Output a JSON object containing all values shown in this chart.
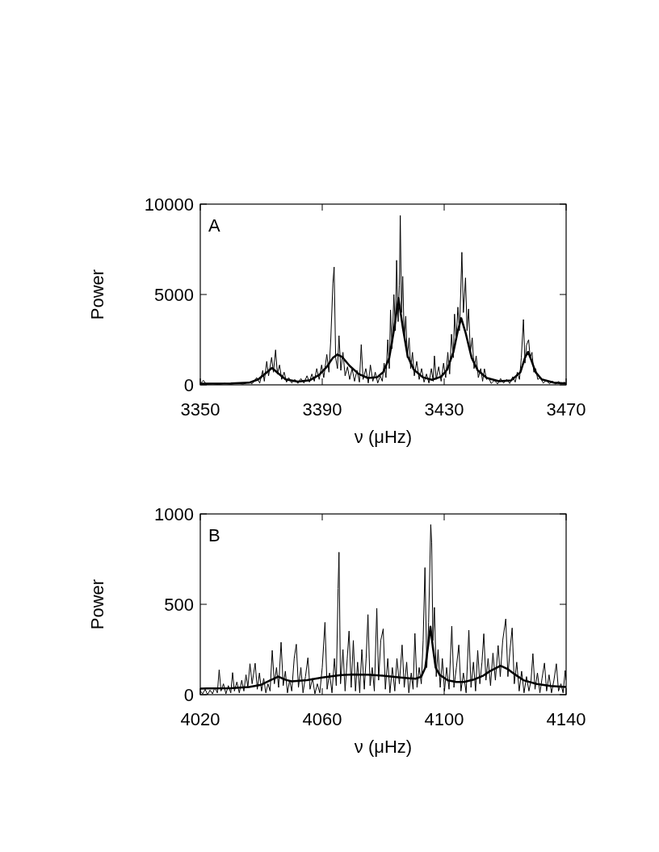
{
  "chart_data": [
    {
      "type": "line",
      "xlabel": "ν (μHz)",
      "ylabel": "Power",
      "annotations": [
        "A"
      ],
      "xlim": [
        3350,
        3470
      ],
      "xticks": [
        3350,
        3390,
        3430,
        3470
      ],
      "ylim": [
        0,
        10000
      ],
      "yticks": [
        0,
        5000,
        10000
      ],
      "series": [
        {
          "color": "#000000",
          "x": [
            3350,
            3351,
            3352,
            3354,
            3356,
            3358,
            3360,
            3362,
            3364,
            3366,
            3367,
            3368.5,
            3369.5,
            3370.5,
            3371,
            3371.8,
            3372.4,
            3373.4,
            3374,
            3374.7,
            3375.3,
            3376,
            3376.7,
            3377.5,
            3378.3,
            3379,
            3380,
            3381,
            3382,
            3383,
            3384,
            3385,
            3385.8,
            3386.6,
            3387.4,
            3388.2,
            3389,
            3389.8,
            3390.5,
            3391.5,
            3392.2,
            3392.8,
            3393.5,
            3393.9,
            3394.4,
            3395,
            3395.5,
            3396.1,
            3396.8,
            3397.5,
            3398.3,
            3399,
            3399.8,
            3400.6,
            3401.4,
            3402.2,
            3402.8,
            3403.4,
            3404.3,
            3405.1,
            3405.8,
            3406.6,
            3407.4,
            3408.2,
            3409,
            3409.7,
            3410.3,
            3410.9,
            3411.5,
            3412,
            3412.4,
            3412.9,
            3413.5,
            3414,
            3414.4,
            3414.9,
            3415.3,
            3415.6,
            3416,
            3416.4,
            3416.9,
            3417.4,
            3417.9,
            3418.5,
            3419,
            3419.6,
            3420.2,
            3421,
            3421.8,
            3422.6,
            3423.4,
            3424.2,
            3425,
            3425.8,
            3426.4,
            3426.8,
            3427.4,
            3428.2,
            3429,
            3429.8,
            3430.5,
            3431.2,
            3431.8,
            3432.4,
            3433,
            3433.4,
            3433.9,
            3434.5,
            3435,
            3435.4,
            3435.8,
            3436.3,
            3437,
            3437.5,
            3438,
            3438.6,
            3439.2,
            3439.8,
            3440.5,
            3441.2,
            3442,
            3442.6,
            3443.2,
            3443.9,
            3444.6,
            3445.4,
            3446.5,
            3447.5,
            3448.5,
            3449.5,
            3450.5,
            3451.5,
            3452.5,
            3453.3,
            3454,
            3454.7,
            3455.3,
            3456,
            3456.5,
            3457,
            3457.7,
            3458.2,
            3458.8,
            3459.4,
            3460,
            3460.7,
            3461.5,
            3462.5,
            3463.5,
            3464.5,
            3465.5,
            3466.5,
            3467.5,
            3468.5,
            3469.5,
            3470
          ],
          "values": [
            50,
            250,
            30,
            60,
            20,
            80,
            30,
            90,
            40,
            150,
            60,
            400,
            100,
            800,
            200,
            1300,
            500,
            1520,
            700,
            1935,
            600,
            1100,
            300,
            700,
            150,
            400,
            100,
            300,
            80,
            350,
            100,
            500,
            150,
            600,
            200,
            900,
            300,
            1100,
            400,
            1680,
            700,
            2500,
            5620,
            6520,
            1500,
            900,
            2720,
            800,
            1800,
            500,
            1000,
            300,
            900,
            200,
            800,
            150,
            2230,
            300,
            900,
            100,
            1100,
            200,
            700,
            100,
            500,
            200,
            1200,
            400,
            2500,
            900,
            4140,
            2000,
            5000,
            3000,
            6890,
            3500,
            5500,
            9375,
            4000,
            6000,
            2500,
            3800,
            1500,
            2600,
            900,
            1800,
            500,
            1300,
            300,
            900,
            150,
            600,
            100,
            900,
            200,
            1600,
            300,
            1000,
            200,
            1200,
            400,
            1800,
            600,
            2800,
            1500,
            3915,
            2500,
            4300,
            3000,
            5000,
            7335,
            4000,
            5920,
            3000,
            4200,
            1800,
            2600,
            900,
            1600,
            400,
            900,
            200,
            890,
            300,
            400,
            80,
            250,
            50,
            350,
            100,
            300,
            80,
            450,
            150,
            700,
            300,
            1500,
            3615,
            1200,
            2200,
            2500,
            1500,
            1800,
            700,
            900,
            300,
            400,
            100,
            250,
            60,
            200,
            40,
            180,
            50,
            150,
            60
          ]
        },
        {
          "color": "#000000",
          "x": [
            3350,
            3360,
            3366,
            3369,
            3371.5,
            3373.5,
            3375.5,
            3378,
            3382,
            3386,
            3389,
            3391.5,
            3393.5,
            3395,
            3396.5,
            3399,
            3402,
            3405,
            3408,
            3410,
            3412,
            3413.5,
            3415,
            3416.5,
            3418,
            3420,
            3423,
            3426,
            3429,
            3431,
            3433,
            3434.5,
            3435.6,
            3437,
            3439,
            3441,
            3444,
            3448,
            3452,
            3455,
            3456.5,
            3457.5,
            3458.5,
            3460,
            3462,
            3466,
            3470
          ],
          "values": [
            70,
            75,
            120,
            300,
            650,
            940,
            650,
            300,
            180,
            260,
            550,
            1000,
            1500,
            1680,
            1550,
            1050,
            600,
            380,
            420,
            700,
            1500,
            3000,
            4800,
            3100,
            1600,
            850,
            420,
            280,
            450,
            850,
            1800,
            3000,
            3690,
            2900,
            1500,
            800,
            380,
            200,
            250,
            700,
            1500,
            1830,
            1400,
            700,
            300,
            120,
            80
          ]
        }
      ]
    },
    {
      "type": "line",
      "xlabel": "ν (μHz)",
      "ylabel": "Power",
      "annotations": [
        "B"
      ],
      "xlim": [
        4020,
        4140
      ],
      "xticks": [
        4020,
        4060,
        4100,
        4140
      ],
      "ylim": [
        0,
        1000
      ],
      "yticks": [
        0,
        500,
        1000
      ],
      "series": [
        {
          "color": "#000000",
          "x": [
            4020,
            4020.8,
            4021.6,
            4022.4,
            4023.2,
            4024,
            4024.8,
            4025.6,
            4026.2,
            4026.8,
            4027.6,
            4028.4,
            4029.2,
            4030,
            4030.6,
            4031.2,
            4032,
            4032.8,
            4033.6,
            4034.3,
            4035,
            4035.6,
            4036.3,
            4037,
            4038,
            4038.7,
            4039.4,
            4040.1,
            4040.8,
            4041.5,
            4042.2,
            4042.9,
            4043.6,
            4044.3,
            4045,
            4045.7,
            4046.5,
            4047.2,
            4047.9,
            4048.6,
            4049.3,
            4050,
            4050.8,
            4051.5,
            4052.2,
            4053,
            4053.7,
            4054.5,
            4055.3,
            4056,
            4056.8,
            4057.6,
            4058.4,
            4059.2,
            4060,
            4060.9,
            4061.6,
            4062.4,
            4063.2,
            4064,
            4064.6,
            4065.2,
            4065.5,
            4066,
            4066.8,
            4067.5,
            4068.2,
            4068.8,
            4069.5,
            4070.2,
            4070.9,
            4071.6,
            4072.3,
            4073,
            4073.8,
            4074.4,
            4075,
            4075.7,
            4076.4,
            4077.1,
            4077.9,
            4078.5,
            4079.2,
            4080,
            4080.7,
            4081.5,
            4082.2,
            4083,
            4083.8,
            4084.5,
            4085.3,
            4086.2,
            4086.9,
            4087.7,
            4088.4,
            4089.2,
            4089.8,
            4090.4,
            4091.1,
            4091.8,
            4092.5,
            4093.1,
            4093.7,
            4094.3,
            4094.9,
            4095.6,
            4095.9,
            4096.3,
            4096.8,
            4097.4,
            4098,
            4098.7,
            4099.4,
            4100.1,
            4100.8,
            4101.6,
            4102.5,
            4103.2,
            4104,
            4104.8,
            4105.5,
            4106.3,
            4107.2,
            4108.1,
            4108.8,
            4109.6,
            4110.3,
            4111,
            4111.7,
            4112.4,
            4113,
            4113.7,
            4114.4,
            4115.2,
            4116,
            4116.8,
            4117.7,
            4118.4,
            4119.2,
            4120.2,
            4120.9,
            4121.6,
            4122.3,
            4123,
            4123.8,
            4124.6,
            4125.4,
            4126.2,
            4127,
            4127.8,
            4128.5,
            4129.1,
            4129.8,
            4130.6,
            4131.4,
            4132.1,
            4132.9,
            4133.6,
            4134.4,
            4135.2,
            4136,
            4136.8,
            4137.5,
            4138.3,
            4139,
            4139.7,
            4140
          ],
          "values": [
            20,
            5,
            30,
            0,
            25,
            5,
            40,
            10,
            138,
            20,
            60,
            5,
            50,
            10,
            122,
            20,
            70,
            10,
            80,
            20,
            110,
            40,
            171,
            60,
            174,
            30,
            120,
            20,
            90,
            10,
            60,
            20,
            245,
            60,
            150,
            40,
            290,
            50,
            130,
            10,
            80,
            20,
            200,
            279,
            40,
            150,
            10,
            100,
            204,
            30,
            90,
            5,
            60,
            10,
            150,
            400,
            30,
            120,
            10,
            200,
            50,
            587,
            788,
            60,
            250,
            20,
            200,
            352,
            40,
            300,
            20,
            180,
            10,
            250,
            30,
            200,
            443,
            50,
            150,
            20,
            478,
            80,
            300,
            364,
            30,
            200,
            10,
            150,
            20,
            200,
            60,
            275,
            40,
            180,
            10,
            120,
            30,
            339,
            40,
            150,
            60,
            300,
            703,
            150,
            400,
            941,
            840,
            300,
            483,
            100,
            250,
            40,
            200,
            20,
            150,
            30,
            379,
            40,
            150,
            275,
            20,
            120,
            10,
            357,
            40,
            180,
            20,
            245,
            60,
            180,
            337,
            80,
            200,
            50,
            230,
            80,
            272,
            100,
            300,
            419,
            100,
            250,
            369,
            60,
            180,
            20,
            130,
            10,
            100,
            20,
            80,
            227,
            30,
            120,
            10,
            90,
            175,
            20,
            110,
            10,
            80,
            171,
            20,
            60,
            10,
            134,
            80
          ]
        },
        {
          "color": "#000000",
          "x": [
            4020,
            4030,
            4036,
            4040,
            4043,
            4045.6,
            4048,
            4050,
            4055,
            4060,
            4066,
            4070,
            4075,
            4080,
            4085,
            4090.6,
            4092.5,
            4093.8,
            4094.8,
            4095.5,
            4096.3,
            4097.2,
            4098.5,
            4101.2,
            4104,
            4106.5,
            4110,
            4112.7,
            4115,
            4118.5,
            4121,
            4123.3,
            4126,
            4130.4,
            4135,
            4140
          ],
          "values": [
            34,
            36,
            42,
            55,
            80,
            100,
            82,
            74,
            80,
            95,
            108,
            112,
            111,
            105,
            96,
            88,
            100,
            150,
            280,
            376,
            260,
            150,
            110,
            79,
            70,
            70,
            85,
            104,
            130,
            160,
            140,
            111,
            80,
            59,
            48,
            42
          ]
        }
      ]
    }
  ]
}
